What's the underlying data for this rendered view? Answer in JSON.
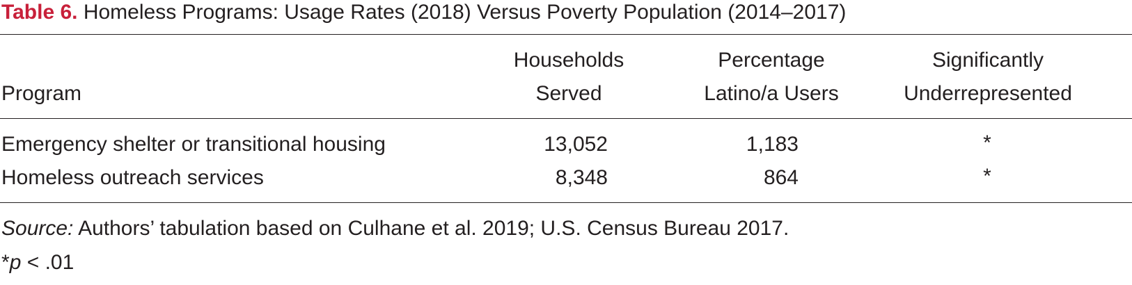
{
  "caption": {
    "label": "Table 6.",
    "title": "Homeless Programs: Usage Rates (2018) Versus Poverty Population (2014–2017)",
    "label_color": "#c8203a"
  },
  "table": {
    "headers": {
      "program": "Program",
      "households_line1": "Households",
      "households_line2": "Served",
      "latino_line1": "Percentage",
      "latino_line2": "Latino/a Users",
      "sig_line1": "Significantly",
      "sig_line2": "Underrepresented"
    },
    "rows": [
      {
        "program": "Emergency shelter or transitional housing",
        "households": "13,052",
        "latino": "1,183",
        "significant": "*"
      },
      {
        "program": "Homeless outreach services",
        "households": "8,348",
        "latino": "864",
        "significant": "*"
      }
    ]
  },
  "notes": {
    "source_label": "Source:",
    "source_text": " Authors’ tabulation based on Culhane et al. 2019; U.S. Census Bureau 2017.",
    "sig_star": "*",
    "sig_p": "p",
    "sig_rest": " < .01"
  }
}
